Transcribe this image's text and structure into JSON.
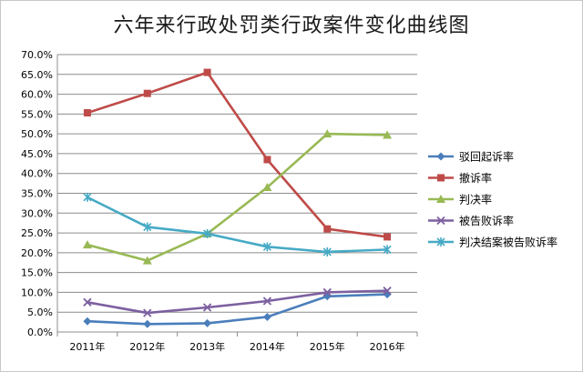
{
  "chart_data": {
    "type": "line",
    "title": "六年来行政处罚类行政案件变化曲线图",
    "categories": [
      "2011年",
      "2012年",
      "2013年",
      "2014年",
      "2015年",
      "2016年"
    ],
    "y_ticks": [
      "0.0%",
      "5.0%",
      "10.0%",
      "15.0%",
      "20.0%",
      "25.0%",
      "30.0%",
      "35.0%",
      "40.0%",
      "45.0%",
      "50.0%",
      "55.0%",
      "60.0%",
      "65.0%",
      "70.0%"
    ],
    "ylim": [
      0,
      70
    ],
    "grid": true,
    "legend_position": "right",
    "series": [
      {
        "name": "驳回起诉率",
        "color": "#4a7ebb",
        "marker": "diamond",
        "values": [
          2.7,
          2.0,
          2.2,
          3.8,
          9.0,
          9.5
        ]
      },
      {
        "name": "撤诉率",
        "color": "#be4b48",
        "marker": "square",
        "values": [
          55.3,
          60.2,
          65.5,
          43.5,
          26.0,
          24.0
        ]
      },
      {
        "name": "判决率",
        "color": "#98b954",
        "marker": "triangle",
        "values": [
          22.0,
          18.0,
          24.8,
          36.5,
          50.0,
          49.7
        ]
      },
      {
        "name": "被告败诉率",
        "color": "#7d60a0",
        "marker": "x",
        "values": [
          7.5,
          4.8,
          6.2,
          7.8,
          10.0,
          10.4
        ]
      },
      {
        "name": "判决结案被告败诉率",
        "color": "#46aac5",
        "marker": "star",
        "values": [
          34.0,
          26.5,
          24.8,
          21.5,
          20.2,
          20.8
        ]
      }
    ]
  }
}
